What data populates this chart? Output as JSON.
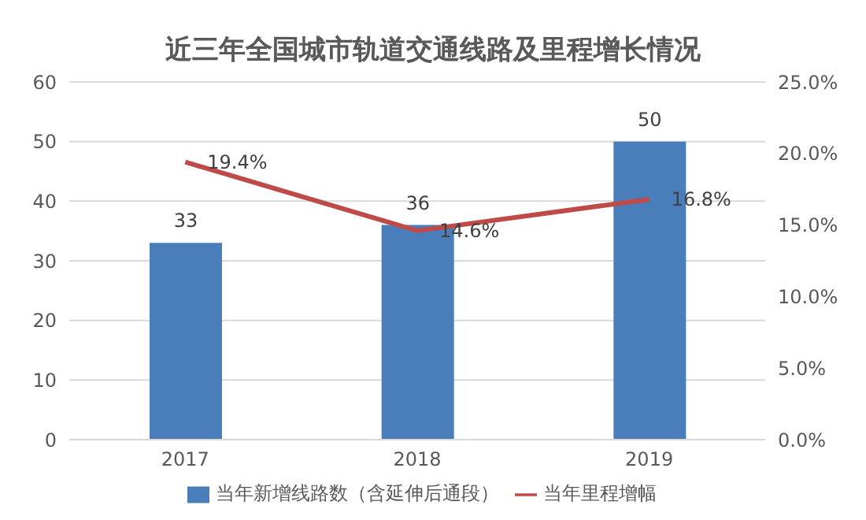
{
  "chart_data": {
    "type": "bar",
    "title": "近三年全国城市轨道交通线路及里程增长情况",
    "categories": [
      "2017",
      "2018",
      "2019"
    ],
    "series": [
      {
        "name": "当年新增线路数（含延伸后通段）",
        "color": "#4a7ebb",
        "values": [
          33,
          36,
          50
        ],
        "value_labels": [
          "33",
          "36",
          "50"
        ]
      },
      {
        "name": "当年里程增幅",
        "type": "line",
        "axis": "y2",
        "color": "#be4b48",
        "values": [
          19.4,
          14.6,
          16.8
        ],
        "value_labels": [
          "19.4%",
          "14.6%",
          "16.8%"
        ]
      }
    ],
    "ylim": [
      0,
      60
    ],
    "yticks": [
      0,
      10,
      20,
      30,
      40,
      50,
      60
    ],
    "y2lim": [
      0,
      25
    ],
    "y2ticks": [
      {
        "value": 0,
        "label": "0.0%"
      },
      {
        "value": 5,
        "label": "5.0%"
      },
      {
        "value": 10,
        "label": "10.0%"
      },
      {
        "value": 15,
        "label": "15.0%"
      },
      {
        "value": 20,
        "label": "20.0%"
      },
      {
        "value": 25,
        "label": "25.0%"
      }
    ],
    "grid": "y",
    "legend": "bottom",
    "marker": "none",
    "line_style": "solid"
  }
}
